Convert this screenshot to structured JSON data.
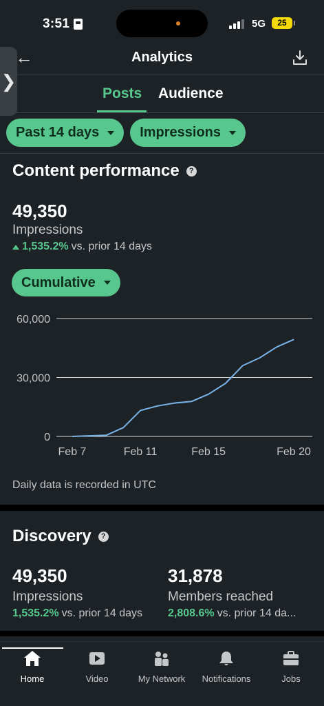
{
  "status_bar": {
    "time": "3:51",
    "network": "5G",
    "battery": "25"
  },
  "header": {
    "title": "Analytics"
  },
  "tabs": [
    {
      "label": "Posts",
      "active": true
    },
    {
      "label": "Audience",
      "active": false
    }
  ],
  "filters": {
    "period": "Past 14 days",
    "metric": "Impressions"
  },
  "content_performance": {
    "title": "Content performance",
    "value": "49,350",
    "label": "Impressions",
    "change": "1,535.2%",
    "change_suffix": "vs. prior 14 days",
    "mode_button": "Cumulative"
  },
  "chart_data": {
    "type": "line",
    "x": [
      "Feb 7",
      "Feb 8",
      "Feb 9",
      "Feb 10",
      "Feb 11",
      "Feb 12",
      "Feb 13",
      "Feb 14",
      "Feb 15",
      "Feb 16",
      "Feb 17",
      "Feb 18",
      "Feb 19",
      "Feb 20"
    ],
    "values": [
      0,
      300,
      600,
      4500,
      13200,
      15500,
      17000,
      17800,
      21500,
      27000,
      36000,
      40000,
      45500,
      49350
    ],
    "tick_labels_x": [
      "Feb 7",
      "Feb 11",
      "Feb 15",
      "Feb 20"
    ],
    "tick_labels_y": [
      "0",
      "30,000",
      "60,000"
    ],
    "ylim": [
      0,
      60000
    ],
    "color": "#78b3e8",
    "grid": true
  },
  "footnote": "Daily data is recorded in UTC",
  "discovery": {
    "title": "Discovery",
    "metrics": [
      {
        "value": "49,350",
        "label": "Impressions",
        "change": "1,535.2%",
        "suffix": "vs. prior 14 days"
      },
      {
        "value": "31,878",
        "label": "Members reached",
        "change": "2,808.6%",
        "suffix": "vs. prior 14 da..."
      }
    ]
  },
  "bottom_nav": [
    {
      "label": "Home",
      "icon": "home-icon",
      "active": true
    },
    {
      "label": "Video",
      "icon": "video-icon",
      "active": false
    },
    {
      "label": "My Network",
      "icon": "network-icon",
      "active": false
    },
    {
      "label": "Notifications",
      "icon": "bell-icon",
      "active": false
    },
    {
      "label": "Jobs",
      "icon": "briefcase-icon",
      "active": false
    }
  ],
  "colors": {
    "accent": "#57c78e",
    "background": "#1d2226",
    "chart_line": "#78b3e8"
  }
}
